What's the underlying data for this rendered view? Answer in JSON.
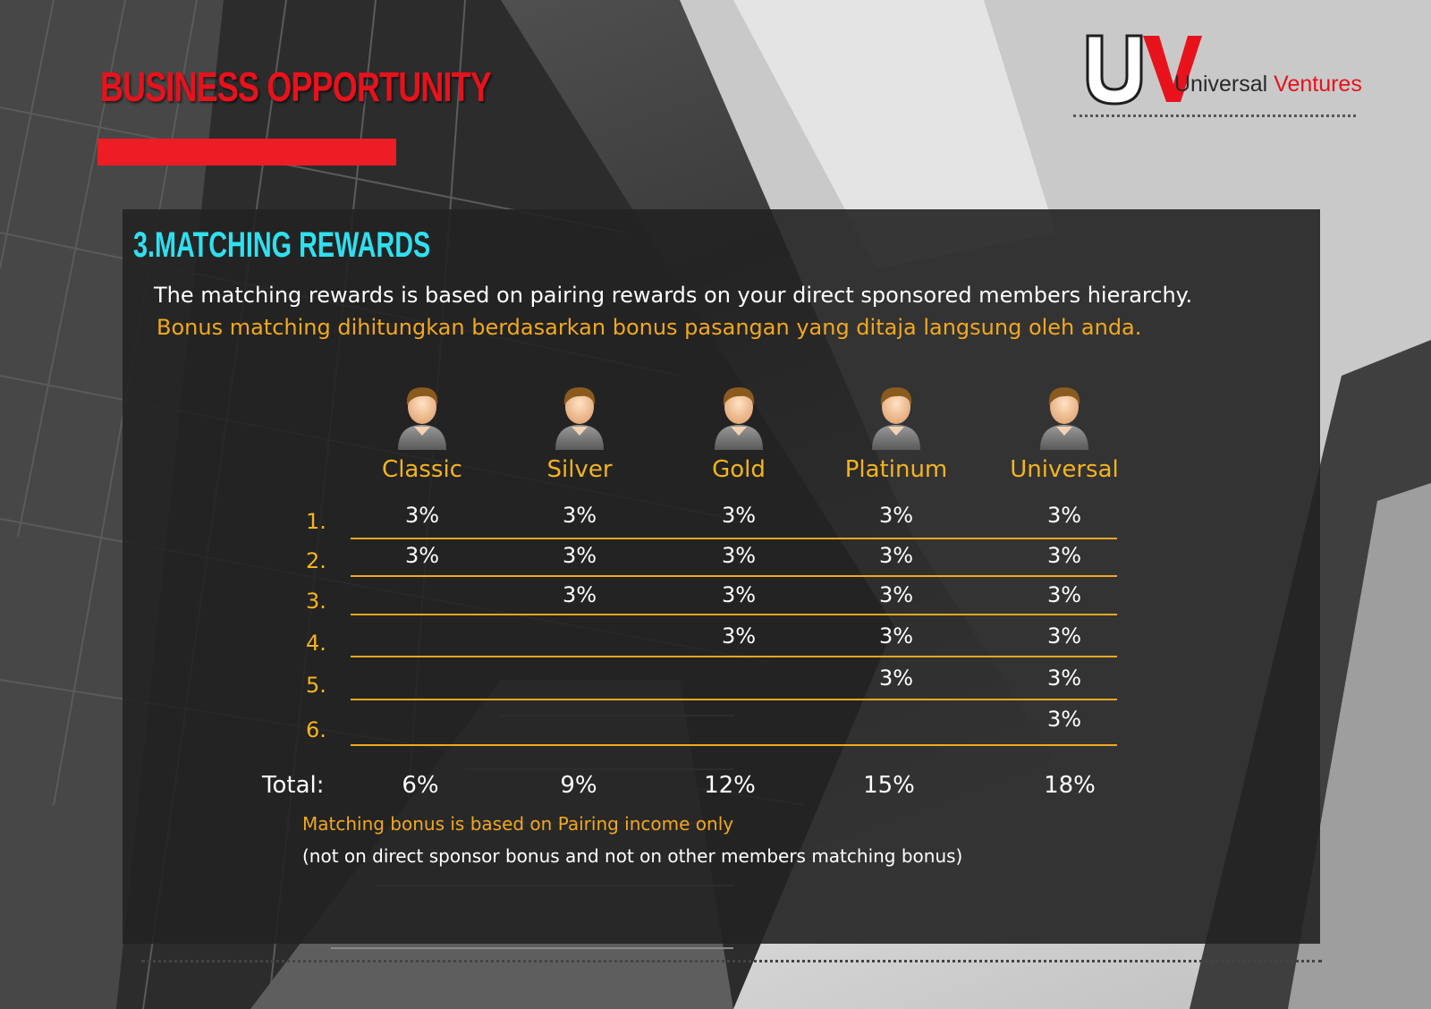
{
  "header": {
    "title": "BUSINESS OPPORTUNITY",
    "logo_mark": "UV",
    "logo_word1": "Universal",
    "logo_word2": "Ventures"
  },
  "section": {
    "title": "3.MATCHING REWARDS",
    "intro_en": "The  matching rewards is based on pairing rewards on your direct sponsored members hierarchy.",
    "intro_ms": "Bonus matching dihitungkan berdasarkan bonus pasangan yang ditaja langsung oleh anda."
  },
  "table": {
    "icon": "member-avatar-icon",
    "columns": [
      "Classic",
      "Silver",
      "Gold",
      "Platinum",
      "Universal"
    ],
    "row_labels": [
      "1.",
      "2.",
      "3.",
      "4.",
      "5.",
      "6."
    ],
    "cells": [
      [
        "3%",
        "3%",
        "3%",
        "3%",
        "3%"
      ],
      [
        "3%",
        "3%",
        "3%",
        "3%",
        "3%"
      ],
      [
        "",
        "3%",
        "3%",
        "3%",
        "3%"
      ],
      [
        "",
        "",
        "3%",
        "3%",
        "3%"
      ],
      [
        "",
        "",
        "",
        "3%",
        "3%"
      ],
      [
        "",
        "",
        "",
        "",
        "3%"
      ]
    ],
    "total_label": "Total:",
    "totals": [
      "6%",
      "9%",
      "12%",
      "15%",
      "18%"
    ]
  },
  "notes": {
    "line1": "Matching bonus is based on Pairing income only",
    "line2": "(not on direct sponsor bonus and not on other members matching bonus)"
  },
  "colors": {
    "brand_red": "#ee1c25",
    "accent_cyan": "#2fe0f0",
    "accent_orange": "#f4b41e"
  }
}
